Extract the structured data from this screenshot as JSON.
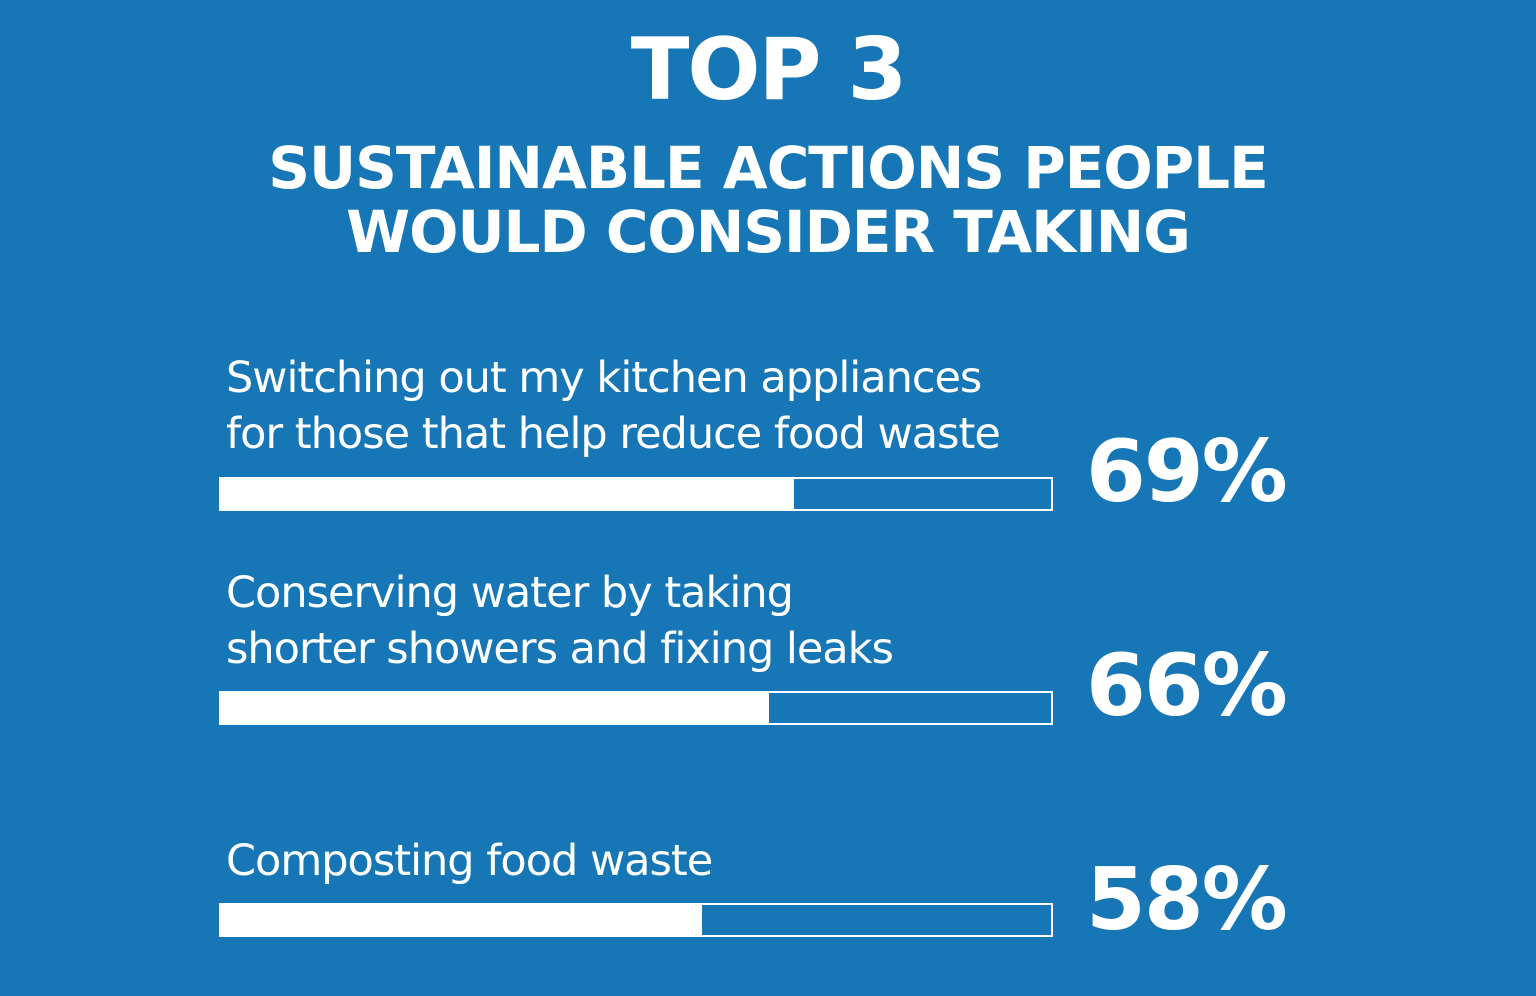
{
  "header": {
    "top_line": "TOP 3",
    "sub_line_1": "SUSTAINABLE ACTIONS PEOPLE",
    "sub_line_2": "WOULD CONSIDER TAKING"
  },
  "chart_data": {
    "type": "bar",
    "orientation": "horizontal",
    "categories": [
      "Switching out my kitchen appliances for those that help reduce food waste",
      "Conserving water by taking shorter showers and fixing leaks",
      "Composting food waste"
    ],
    "values": [
      69,
      66,
      58
    ],
    "value_labels": [
      "69%",
      "66%",
      "58%"
    ],
    "xlim": [
      0,
      100
    ],
    "grid": false,
    "legend": "none",
    "colors": {
      "background": "#1777b6",
      "bar_fill": "#ffffff",
      "bar_outline": "#ffffff",
      "text": "#ffffff"
    }
  },
  "items": [
    {
      "label_lines": [
        "Switching out my kitchen appliances",
        "for those that help reduce food waste"
      ],
      "value_label": "69%"
    },
    {
      "label_lines": [
        "Conserving water by taking",
        "shorter showers and fixing leaks"
      ],
      "value_label": "66%"
    },
    {
      "label_lines": [
        "Composting food waste"
      ],
      "value_label": "58%"
    }
  ]
}
